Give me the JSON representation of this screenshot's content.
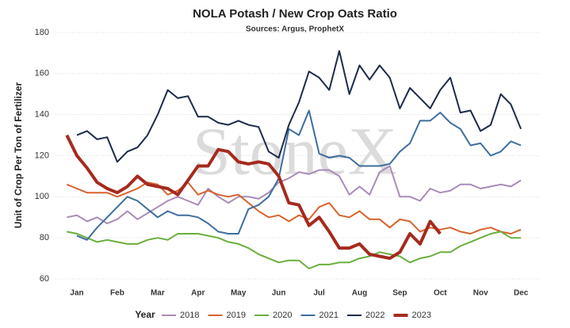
{
  "chart_data": {
    "type": "line",
    "title": "NOLA Potash / New Crop Oats Ratio",
    "subtitle": "Sources: Argus, ProphetX",
    "watermark": "StoneX",
    "y_label": "Unit of Crop Per Ton of Fertilizer",
    "legend_title": "Year",
    "legend_position": "bottom",
    "grid": true,
    "ylim": [
      60,
      180
    ],
    "yticks": [
      60,
      80,
      100,
      120,
      140,
      160,
      180
    ],
    "categories": [
      null,
      "Jan",
      null,
      null,
      null,
      "Feb",
      null,
      null,
      null,
      "Mar",
      null,
      null,
      null,
      "Apr",
      null,
      null,
      null,
      "May",
      null,
      null,
      null,
      "Jun",
      null,
      null,
      null,
      "Jul",
      null,
      null,
      null,
      "Aug",
      null,
      null,
      null,
      "Sep",
      null,
      null,
      null,
      "Oct",
      null,
      null,
      null,
      "Nov",
      null,
      null,
      null,
      "Dec",
      null,
      null
    ],
    "series": [
      {
        "name": "2018",
        "color": "#a98bb8",
        "width": 2,
        "values": [
          90,
          91,
          88,
          90,
          87,
          89,
          93,
          89,
          92,
          95,
          98,
          100,
          98,
          96,
          104,
          100,
          97,
          100,
          100,
          99,
          102,
          107,
          109,
          112,
          111,
          113,
          113,
          110,
          101,
          105,
          101,
          112,
          115,
          100,
          100,
          98,
          104,
          102,
          103,
          106,
          106,
          104,
          105,
          106,
          105,
          108,
          null,
          null
        ]
      },
      {
        "name": "2019",
        "color": "#d8622c",
        "width": 2,
        "values": [
          106,
          104,
          102,
          102,
          102,
          100,
          102,
          104,
          107,
          106,
          101,
          103,
          107,
          101,
          103,
          101,
          100,
          101,
          97,
          93,
          90,
          91,
          88,
          91,
          89,
          95,
          97,
          91,
          90,
          93,
          89,
          89,
          85,
          89,
          88,
          83,
          85,
          84,
          85,
          83,
          82,
          84,
          85,
          83,
          82,
          84,
          null,
          null
        ]
      },
      {
        "name": "2020",
        "color": "#6aaf3d",
        "width": 2,
        "values": [
          83,
          82,
          80,
          78,
          79,
          78,
          77,
          77,
          79,
          80,
          79,
          82,
          82,
          82,
          81,
          80,
          78,
          77,
          75,
          72,
          70,
          68,
          69,
          69,
          65,
          67,
          67,
          68,
          68,
          70,
          71,
          73,
          72,
          71,
          68,
          70,
          71,
          73,
          73,
          76,
          78,
          80,
          82,
          83,
          80,
          80,
          null,
          null
        ]
      },
      {
        "name": "2021",
        "color": "#3e6e9e",
        "width": 2,
        "values": [
          null,
          81,
          79,
          85,
          90,
          95,
          100,
          98,
          94,
          90,
          93,
          91,
          91,
          90,
          87,
          83,
          82,
          82,
          94,
          96,
          100,
          109,
          133,
          130,
          142,
          121,
          119,
          120,
          119,
          115,
          115,
          115,
          116,
          122,
          126,
          137,
          137,
          141,
          136,
          133,
          125,
          126,
          120,
          122,
          127,
          125,
          null,
          null
        ]
      },
      {
        "name": "2022",
        "color": "#1c2b4a",
        "width": 2,
        "values": [
          null,
          130,
          132,
          128,
          129,
          117,
          122,
          124,
          130,
          140,
          152,
          148,
          149,
          139,
          139,
          136,
          135,
          137,
          135,
          134,
          122,
          119,
          135,
          146,
          161,
          158,
          152,
          171,
          150,
          164,
          157,
          164,
          158,
          143,
          153,
          148,
          143,
          152,
          158,
          141,
          142,
          132,
          135,
          150,
          145,
          133,
          null,
          null
        ]
      },
      {
        "name": "2023",
        "color": "#a52a1e",
        "width": 4,
        "values": [
          130,
          120,
          114,
          107,
          104,
          102,
          105,
          110,
          106,
          105,
          104,
          101,
          108,
          115,
          115,
          123,
          122,
          117,
          116,
          117,
          116,
          110,
          97,
          96,
          86,
          90,
          83,
          75,
          75,
          77,
          72,
          71,
          70,
          73,
          82,
          77,
          88,
          82,
          null,
          null,
          null,
          null,
          null,
          null,
          null,
          null,
          null,
          null
        ]
      }
    ]
  }
}
